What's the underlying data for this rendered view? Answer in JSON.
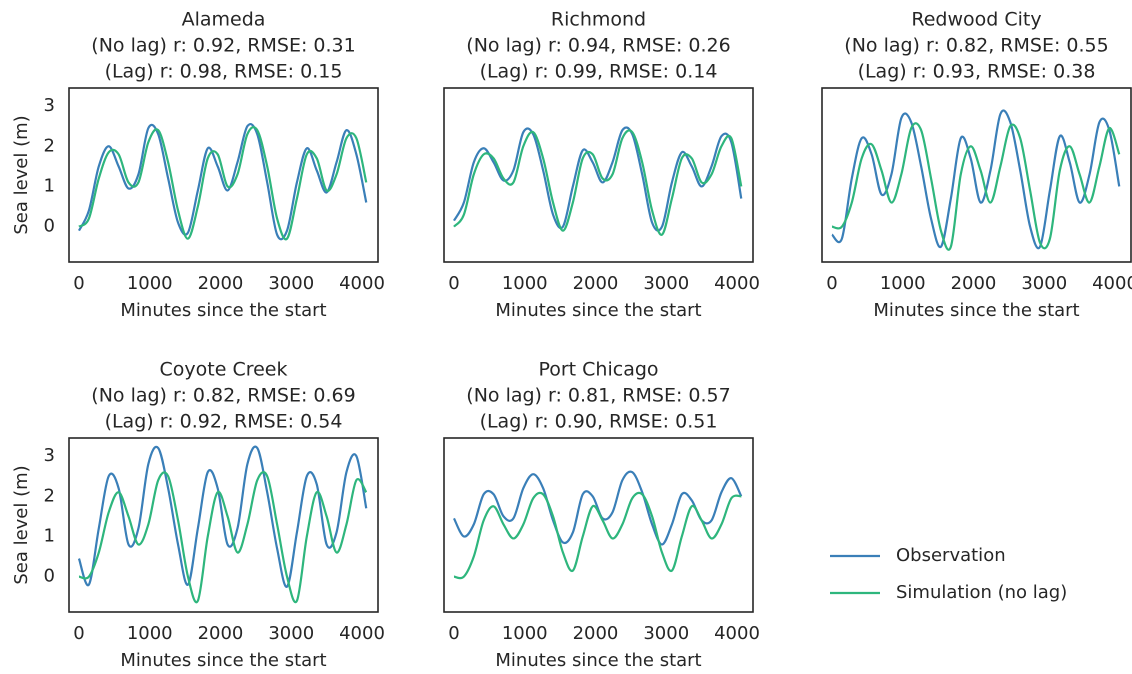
{
  "chart_data": [
    {
      "type": "line",
      "title": "Alameda",
      "subtitle": [
        "(No lag) r: 0.92, RMSE: 0.31",
        "(Lag) r: 0.98, RMSE: 0.15"
      ],
      "xlabel": "Minutes since the start",
      "ylabel": "Sea level (m)",
      "x": [
        0,
        140,
        280,
        420,
        560,
        700,
        840,
        980,
        1120,
        1260,
        1400,
        1540,
        1680,
        1820,
        1960,
        2100,
        2240,
        2380,
        2520,
        2660,
        2800,
        2940,
        3080,
        3220,
        3360,
        3500,
        3640,
        3780,
        3920,
        4060
      ],
      "xlim": [
        -141,
        4226
      ],
      "xticks": [
        0,
        1000,
        2000,
        3000,
        4000
      ],
      "ylim": [
        -0.88,
        3.45
      ],
      "yticks": [
        0,
        1,
        2,
        3
      ],
      "series": [
        {
          "name": "Observation",
          "color": "#3a7fb8",
          "values": [
            -0.1,
            0.4,
            1.5,
            2.0,
            1.5,
            0.95,
            1.3,
            2.45,
            2.3,
            1.2,
            0.1,
            -0.15,
            0.9,
            1.95,
            1.5,
            0.9,
            1.6,
            2.5,
            2.3,
            1.1,
            -0.2,
            -0.1,
            1.1,
            1.95,
            1.4,
            0.85,
            1.6,
            2.4,
            1.8,
            0.6
          ]
        },
        {
          "name": "Simulation (no lag)",
          "color": "#2eb67d",
          "values": [
            0.0,
            0.2,
            1.2,
            1.85,
            1.8,
            1.1,
            1.1,
            2.1,
            2.4,
            1.6,
            0.4,
            -0.3,
            0.5,
            1.7,
            1.8,
            1.0,
            1.3,
            2.3,
            2.4,
            1.5,
            0.2,
            -0.3,
            0.7,
            1.8,
            1.7,
            0.9,
            1.3,
            2.2,
            2.2,
            1.1
          ]
        }
      ]
    },
    {
      "type": "line",
      "title": "Richmond",
      "subtitle": [
        "(No lag) r: 0.94, RMSE: 0.26",
        "(Lag) r: 0.99, RMSE: 0.14"
      ],
      "xlabel": "Minutes since the start",
      "x": [
        0,
        140,
        280,
        420,
        560,
        700,
        840,
        980,
        1120,
        1260,
        1400,
        1540,
        1680,
        1820,
        1960,
        2100,
        2240,
        2380,
        2520,
        2660,
        2800,
        2940,
        3080,
        3220,
        3360,
        3500,
        3640,
        3780,
        3920,
        4060
      ],
      "xlim": [
        -141,
        4226
      ],
      "xticks": [
        0,
        1000,
        2000,
        3000,
        4000
      ],
      "ylim": [
        -0.88,
        3.45
      ],
      "series": [
        {
          "color": "#3a7fb8",
          "values": [
            0.15,
            0.6,
            1.6,
            1.95,
            1.6,
            1.15,
            1.4,
            2.35,
            2.3,
            1.4,
            0.3,
            0.0,
            1.0,
            1.9,
            1.6,
            1.1,
            1.6,
            2.4,
            2.3,
            1.3,
            0.1,
            0.0,
            1.1,
            1.85,
            1.5,
            1.0,
            1.5,
            2.25,
            2.1,
            0.7
          ]
        },
        {
          "color": "#2eb67d",
          "values": [
            0.0,
            0.3,
            1.3,
            1.8,
            1.7,
            1.2,
            1.1,
            2.0,
            2.35,
            1.7,
            0.6,
            -0.1,
            0.6,
            1.7,
            1.8,
            1.2,
            1.3,
            2.2,
            2.35,
            1.6,
            0.4,
            -0.2,
            0.7,
            1.7,
            1.7,
            1.1,
            1.3,
            2.0,
            2.2,
            1.0
          ]
        }
      ]
    },
    {
      "type": "line",
      "title": "Redwood City",
      "subtitle": [
        "(No lag) r: 0.82, RMSE: 0.55",
        "(Lag) r: 0.93, RMSE: 0.38"
      ],
      "xlabel": "Minutes since the start",
      "x": [
        0,
        140,
        280,
        420,
        560,
        700,
        840,
        980,
        1120,
        1260,
        1400,
        1540,
        1680,
        1820,
        1960,
        2100,
        2240,
        2380,
        2520,
        2660,
        2800,
        2940,
        3080,
        3220,
        3360,
        3500,
        3640,
        3780,
        3920,
        4060
      ],
      "xlim": [
        -141,
        4226
      ],
      "xticks": [
        0,
        1000,
        2000,
        3000,
        4000
      ],
      "ylim": [
        -0.88,
        3.45
      ],
      "series": [
        {
          "color": "#3a7fb8",
          "values": [
            -0.2,
            -0.3,
            1.2,
            2.2,
            1.8,
            0.8,
            1.3,
            2.7,
            2.6,
            1.5,
            0.2,
            -0.5,
            0.7,
            2.2,
            1.7,
            0.6,
            1.4,
            2.8,
            2.6,
            1.4,
            0.0,
            -0.5,
            0.9,
            2.25,
            1.6,
            0.6,
            1.3,
            2.6,
            2.4,
            1.0
          ]
        },
        {
          "color": "#2eb67d",
          "values": [
            0.0,
            0.0,
            0.6,
            1.7,
            2.05,
            1.4,
            0.6,
            1.3,
            2.45,
            2.4,
            1.2,
            -0.1,
            -0.5,
            1.3,
            2.0,
            1.4,
            0.6,
            1.5,
            2.5,
            2.2,
            0.9,
            -0.4,
            -0.3,
            1.4,
            2.0,
            1.3,
            0.6,
            1.5,
            2.45,
            1.8
          ]
        }
      ]
    },
    {
      "type": "line",
      "title": "Coyote Creek",
      "subtitle": [
        "(No lag) r: 0.82, RMSE: 0.69",
        "(Lag) r: 0.92, RMSE: 0.54"
      ],
      "xlabel": "Minutes since the start",
      "ylabel": "Sea level (m)",
      "x": [
        0,
        140,
        280,
        420,
        560,
        700,
        840,
        980,
        1120,
        1260,
        1400,
        1540,
        1680,
        1820,
        1960,
        2100,
        2240,
        2380,
        2520,
        2660,
        2800,
        2940,
        3080,
        3220,
        3360,
        3500,
        3640,
        3780,
        3920,
        4060
      ],
      "xlim": [
        -141,
        4226
      ],
      "xticks": [
        0,
        1000,
        2000,
        3000,
        4000
      ],
      "ylim": [
        -0.88,
        3.45
      ],
      "yticks": [
        0,
        1,
        2,
        3
      ],
      "series": [
        {
          "color": "#3a7fb8",
          "values": [
            0.45,
            -0.2,
            1.2,
            2.5,
            2.2,
            0.8,
            1.2,
            2.8,
            3.2,
            2.2,
            0.8,
            -0.2,
            1.2,
            2.6,
            2.2,
            0.8,
            1.2,
            2.8,
            3.2,
            2.1,
            0.7,
            -0.25,
            1.1,
            2.5,
            2.3,
            0.8,
            1.1,
            2.6,
            3.0,
            1.7
          ]
        },
        {
          "color": "#2eb67d",
          "values": [
            0.0,
            0.0,
            0.6,
            1.6,
            2.1,
            1.5,
            0.8,
            1.3,
            2.4,
            2.5,
            1.4,
            0.0,
            -0.6,
            1.0,
            2.1,
            1.5,
            0.6,
            1.3,
            2.4,
            2.5,
            1.3,
            0.0,
            -0.6,
            1.0,
            2.1,
            1.5,
            0.6,
            1.3,
            2.4,
            2.1
          ]
        }
      ]
    },
    {
      "type": "line",
      "title": "Port Chicago",
      "subtitle": [
        "(No lag) r: 0.81, RMSE: 0.57",
        "(Lag) r: 0.90, RMSE: 0.51"
      ],
      "xlabel": "Minutes since the start",
      "x": [
        0,
        140,
        280,
        420,
        560,
        700,
        840,
        980,
        1120,
        1260,
        1400,
        1540,
        1680,
        1820,
        1960,
        2100,
        2240,
        2380,
        2520,
        2660,
        2800,
        2940,
        3080,
        3220,
        3360,
        3500,
        3640,
        3780,
        3920,
        4060
      ],
      "xlim": [
        -141,
        4226
      ],
      "xticks": [
        0,
        1000,
        2000,
        3000,
        4000
      ],
      "ylim": [
        -0.88,
        3.45
      ],
      "series": [
        {
          "color": "#3a7fb8",
          "values": [
            1.45,
            1.0,
            1.3,
            2.05,
            2.05,
            1.5,
            1.45,
            2.2,
            2.55,
            2.2,
            1.4,
            0.85,
            1.1,
            2.05,
            2.0,
            1.45,
            1.6,
            2.4,
            2.6,
            2.1,
            1.3,
            0.8,
            1.3,
            2.05,
            1.9,
            1.4,
            1.4,
            2.1,
            2.45,
            2.0
          ]
        },
        {
          "color": "#2eb67d",
          "values": [
            0.0,
            0.0,
            0.5,
            1.4,
            1.75,
            1.3,
            0.95,
            1.3,
            1.95,
            2.05,
            1.5,
            0.6,
            0.15,
            1.0,
            1.75,
            1.4,
            0.95,
            1.3,
            1.95,
            2.05,
            1.5,
            0.6,
            0.15,
            1.0,
            1.75,
            1.4,
            0.95,
            1.3,
            1.95,
            2.0
          ]
        }
      ]
    }
  ]
}
